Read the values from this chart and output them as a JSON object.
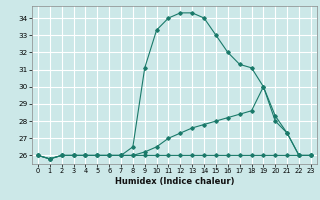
{
  "title": "",
  "xlabel": "Humidex (Indice chaleur)",
  "background_color": "#cce8e8",
  "grid_color": "#ffffff",
  "line_color": "#1a7a6a",
  "xlim": [
    -0.5,
    23.5
  ],
  "ylim": [
    25.5,
    34.7
  ],
  "xticks": [
    0,
    1,
    2,
    3,
    4,
    5,
    6,
    7,
    8,
    9,
    10,
    11,
    12,
    13,
    14,
    15,
    16,
    17,
    18,
    19,
    20,
    21,
    22,
    23
  ],
  "yticks": [
    26,
    27,
    28,
    29,
    30,
    31,
    32,
    33,
    34
  ],
  "series": [
    {
      "x": [
        0,
        1,
        2,
        3,
        4,
        5,
        6,
        7,
        8,
        9,
        10,
        11,
        12,
        13,
        14,
        15,
        16,
        17,
        18,
        19,
        20,
        21,
        22,
        23
      ],
      "y": [
        26,
        25.8,
        26,
        26,
        26,
        26,
        26,
        26,
        26,
        26,
        26,
        26,
        26,
        26,
        26,
        26,
        26,
        26,
        26,
        26,
        26,
        26,
        26,
        26
      ]
    },
    {
      "x": [
        0,
        1,
        2,
        3,
        4,
        5,
        6,
        7,
        8,
        9,
        10,
        11,
        12,
        13,
        14,
        15,
        16,
        17,
        18,
        19,
        20,
        21,
        22,
        23
      ],
      "y": [
        26,
        25.8,
        26,
        26,
        26,
        26,
        26,
        26,
        26,
        26.2,
        26.5,
        27,
        27.3,
        27.6,
        27.8,
        28,
        28.2,
        28.4,
        28.6,
        30,
        28.3,
        27.3,
        26,
        26
      ]
    },
    {
      "x": [
        0,
        1,
        2,
        3,
        4,
        5,
        6,
        7,
        8,
        9,
        10,
        11,
        12,
        13,
        14,
        15,
        16,
        17,
        18,
        19,
        20,
        21,
        22,
        23
      ],
      "y": [
        26,
        25.8,
        26,
        26,
        26,
        26,
        26,
        26,
        26.5,
        31.1,
        33.3,
        34.0,
        34.3,
        34.3,
        34.0,
        33.0,
        32.0,
        31.3,
        31.1,
        30.0,
        28.0,
        27.3,
        26,
        26
      ]
    }
  ]
}
